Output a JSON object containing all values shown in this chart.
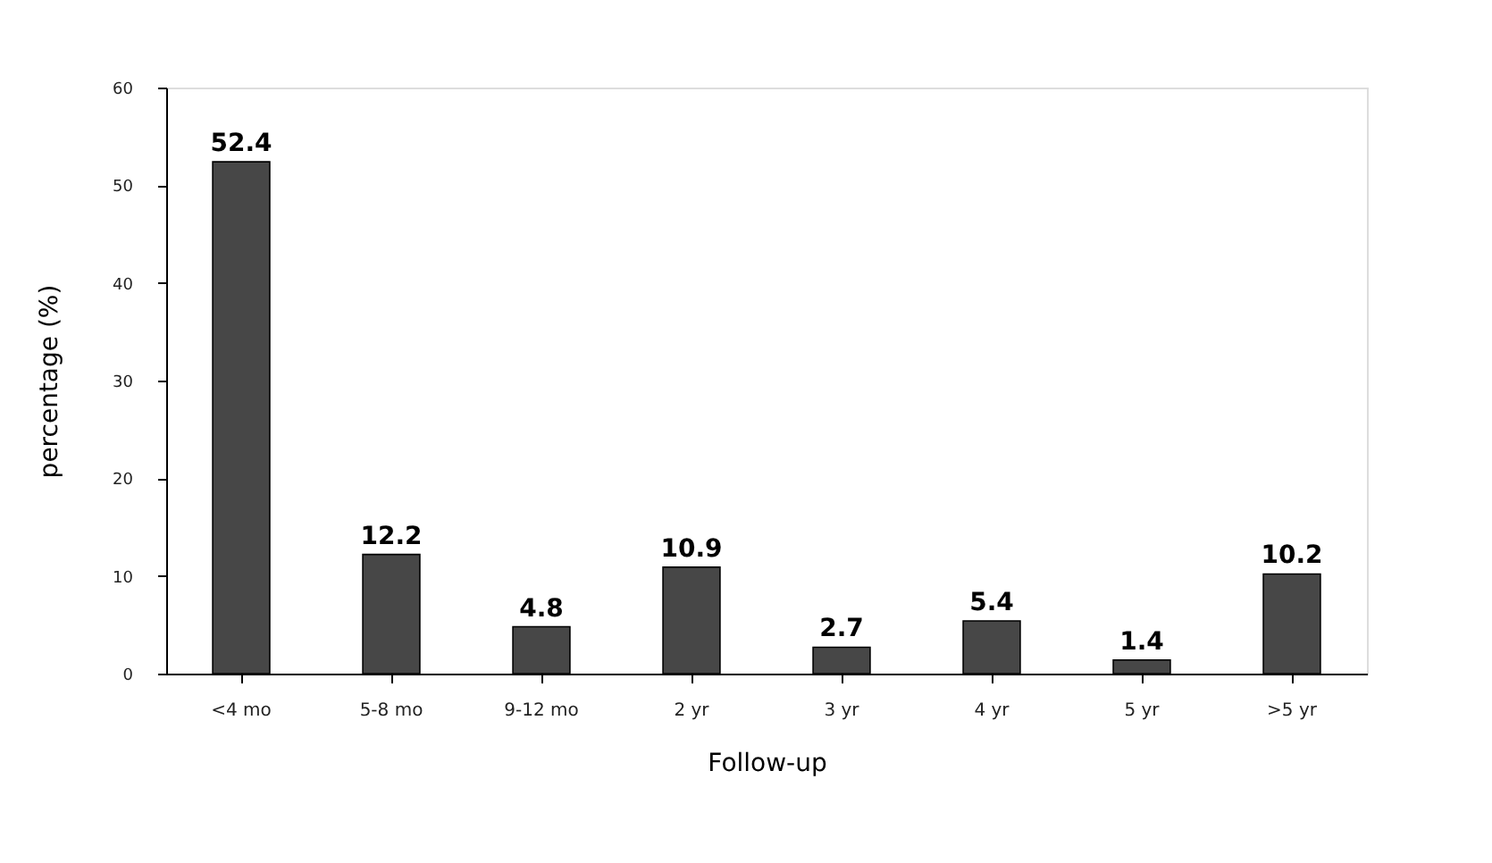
{
  "chart_data": {
    "type": "bar",
    "xlabel": "Follow-up",
    "ylabel": "percentage (%)",
    "categories": [
      "<4 mo",
      "5-8 mo",
      "9-12 mo",
      "2 yr",
      "3 yr",
      "4 yr",
      "5 yr",
      ">5 yr"
    ],
    "values": [
      52.4,
      12.2,
      4.8,
      10.9,
      2.7,
      5.4,
      1.4,
      10.2
    ],
    "color": "#474747",
    "ylim": [
      0,
      60
    ],
    "yticks": [
      0,
      10,
      20,
      30,
      40,
      50,
      60
    ],
    "grid": false,
    "data_labels": true
  }
}
